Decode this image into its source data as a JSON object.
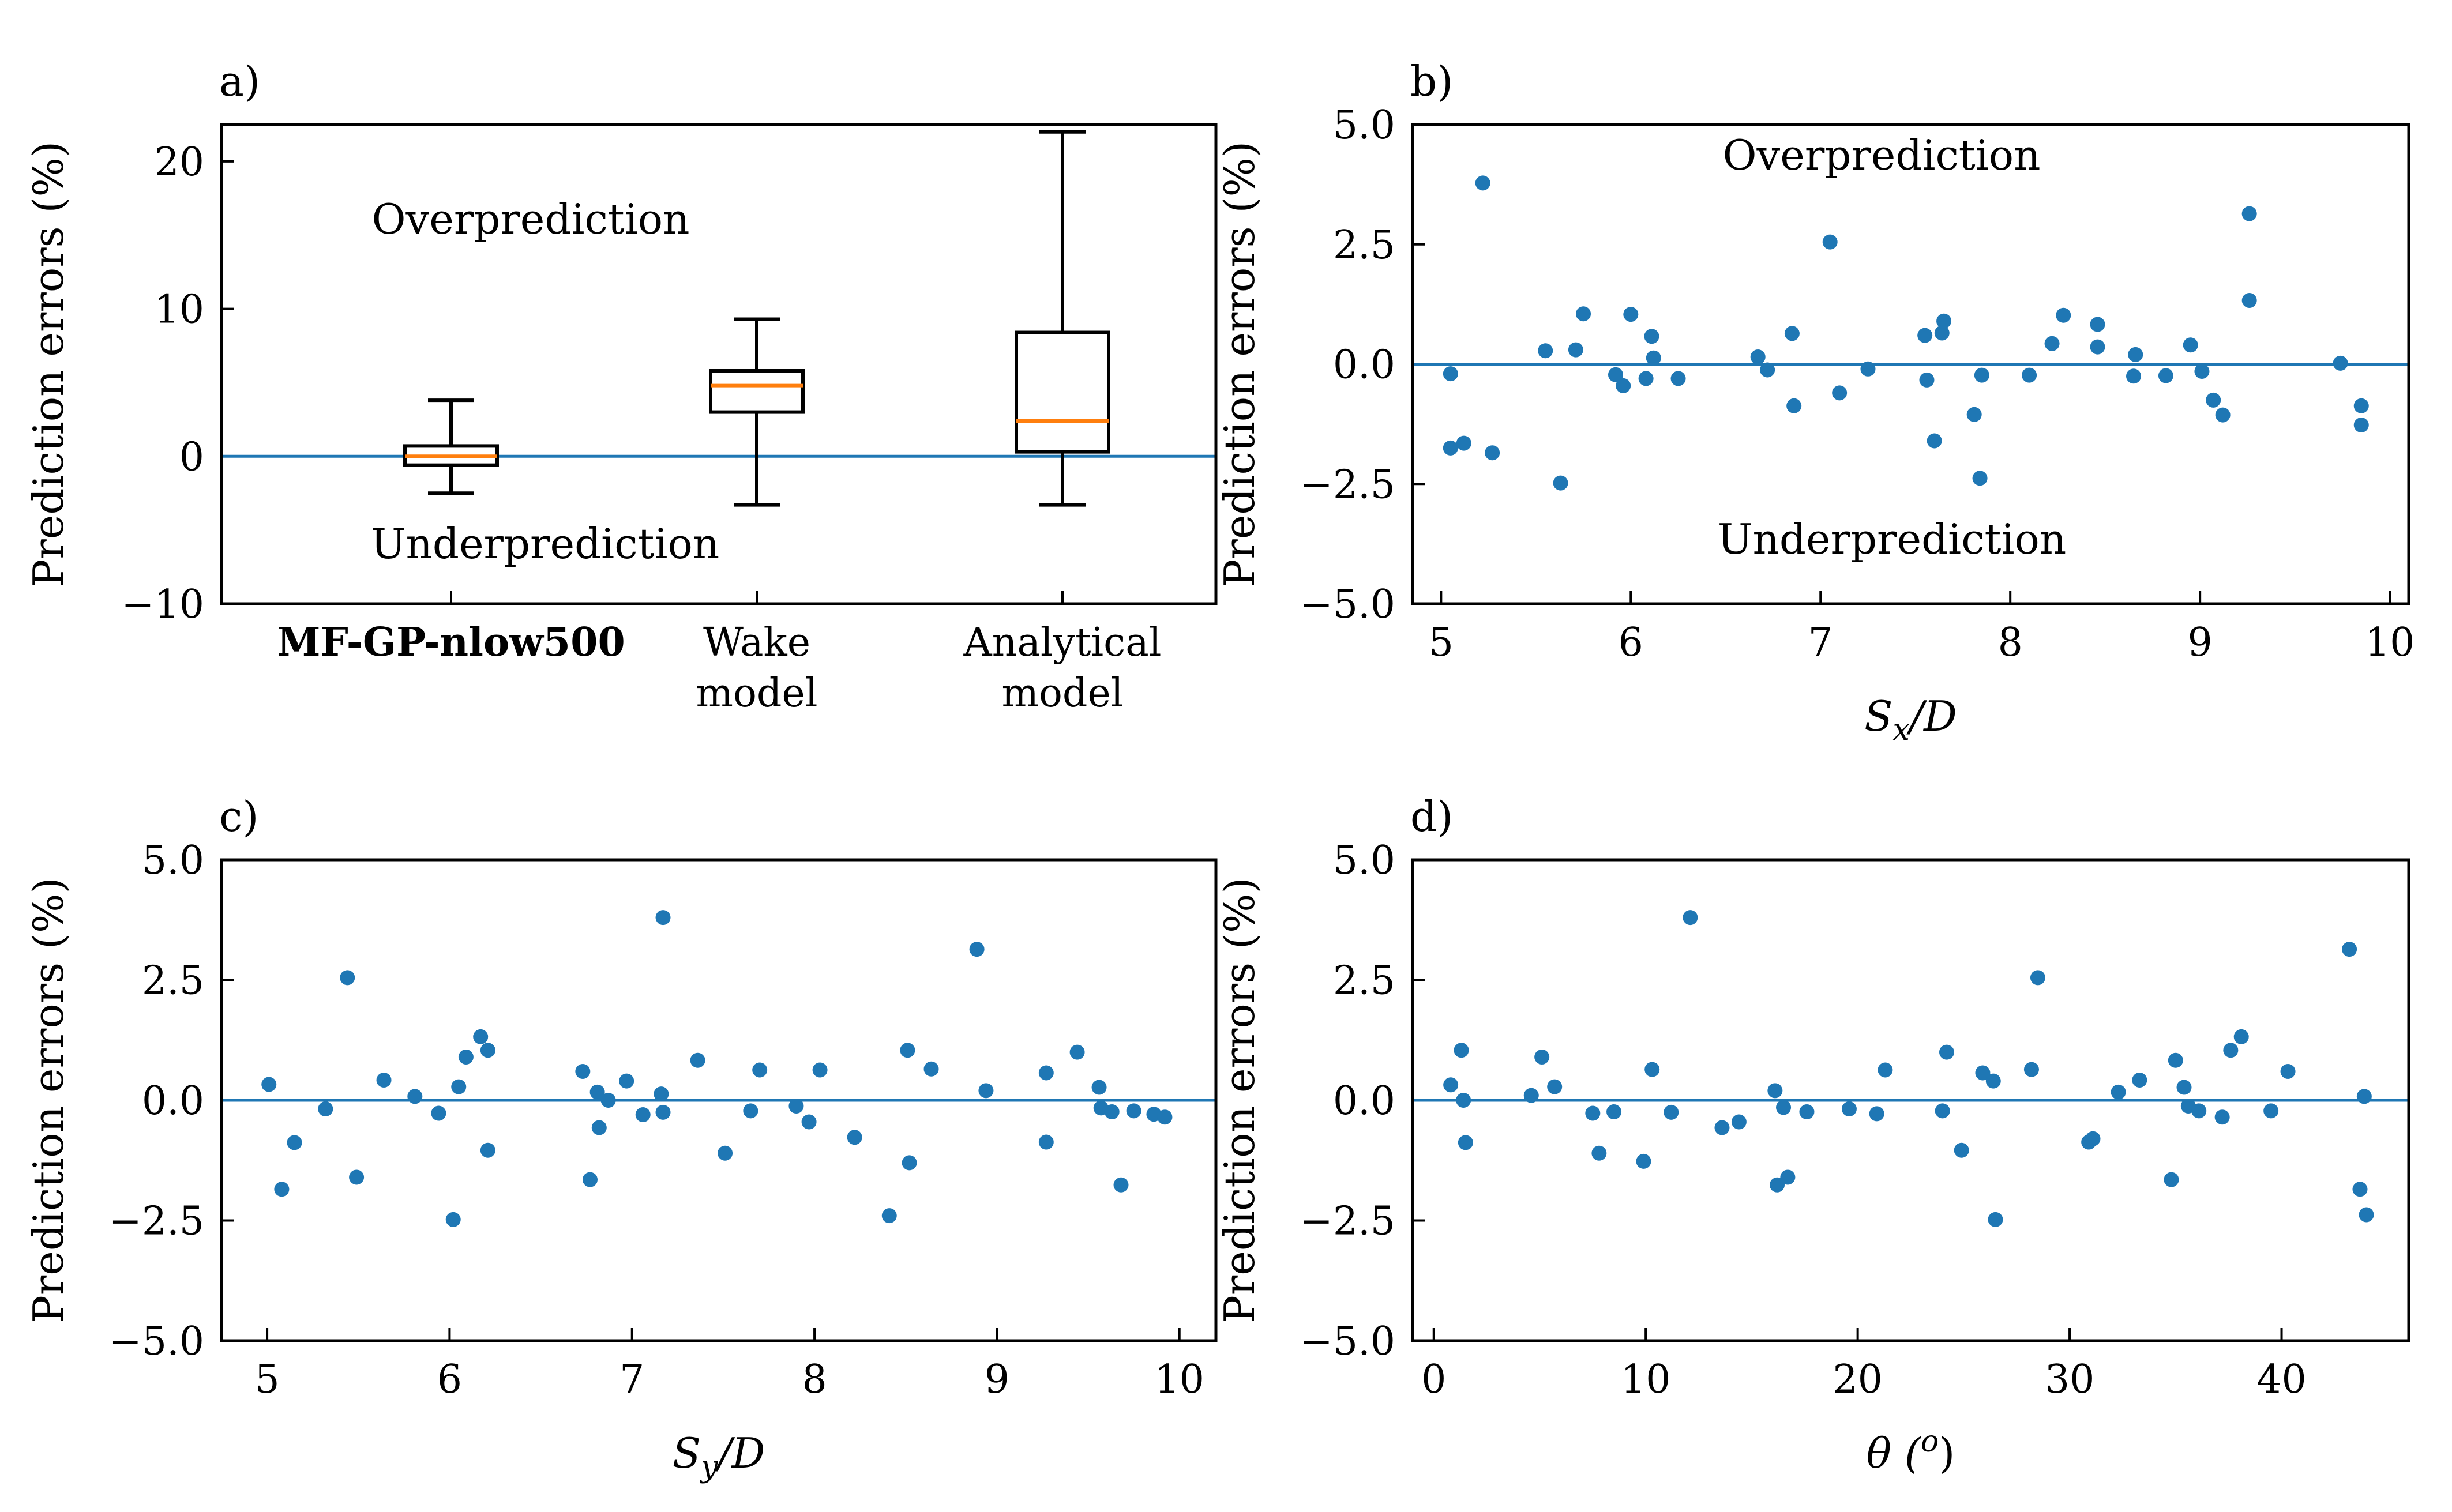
{
  "chart_data": [
    {
      "panel": "a)",
      "type": "box",
      "ylabel": "Prediction errors (%)",
      "ylim": [
        -10,
        22.5
      ],
      "yticks": [
        -10,
        0,
        10,
        20
      ],
      "ytick_labels": [
        "−10",
        "0",
        "10",
        "20"
      ],
      "reference_line": 0,
      "annotations": [
        "Overprediction",
        "Underprediction"
      ],
      "boxes": [
        {
          "label_lines": [
            "MF-GP-nlow500"
          ],
          "bold": true,
          "whislo": -2.5,
          "q1": -0.6,
          "med": 0.0,
          "q3": 0.7,
          "whishi": 3.8
        },
        {
          "label_lines": [
            "Wake",
            "model"
          ],
          "bold": false,
          "whislo": -3.3,
          "q1": 3.0,
          "med": 4.8,
          "q3": 5.8,
          "whishi": 9.3
        },
        {
          "label_lines": [
            "Analytical",
            "model"
          ],
          "bold": false,
          "whislo": -3.3,
          "q1": 0.3,
          "med": 2.4,
          "q3": 8.4,
          "whishi": 22.0
        }
      ]
    },
    {
      "panel": "b)",
      "type": "scatter",
      "xlabel": "S_x/D",
      "xlabel_main": "S",
      "xlabel_sub": "x",
      "xlabel_tail": "/D",
      "ylabel": "Prediction errors (%)",
      "xlim": [
        4.85,
        10.1
      ],
      "ylim": [
        -5.0,
        5.0
      ],
      "xticks": [
        5,
        6,
        7,
        8,
        9,
        10
      ],
      "xtick_labels": [
        "5",
        "6",
        "7",
        "8",
        "9",
        "10"
      ],
      "yticks": [
        -5.0,
        -2.5,
        0.0,
        2.5,
        5.0
      ],
      "ytick_labels": [
        "−5.0",
        "−2.5",
        "0.0",
        "2.5",
        "5.0"
      ],
      "reference_line": 0,
      "annotations": [
        "Overprediction",
        "Underprediction"
      ],
      "x": [
        5.05,
        5.05,
        5.12,
        5.22,
        5.27,
        5.55,
        5.63,
        5.71,
        5.75,
        5.92,
        5.96,
        6.0,
        6.08,
        6.11,
        6.12,
        6.25,
        6.67,
        6.72,
        6.85,
        6.86,
        7.05,
        7.1,
        7.25,
        7.55,
        7.56,
        7.6,
        7.64,
        7.65,
        7.81,
        7.84,
        7.85,
        8.1,
        8.22,
        8.28,
        8.46,
        8.46,
        8.65,
        8.66,
        8.82,
        8.95,
        9.01,
        9.07,
        9.12,
        9.26,
        9.26,
        9.74,
        9.85,
        9.85
      ],
      "y": [
        -0.2,
        -1.75,
        -1.65,
        3.78,
        -1.85,
        0.28,
        -2.48,
        0.3,
        1.05,
        -0.22,
        -0.45,
        1.04,
        -0.3,
        0.58,
        0.13,
        -0.3,
        0.15,
        -0.12,
        0.64,
        -0.87,
        2.55,
        -0.6,
        -0.1,
        0.6,
        -0.33,
        -1.6,
        0.65,
        0.9,
        -1.05,
        -2.38,
        -0.23,
        -0.23,
        0.43,
        1.02,
        0.36,
        0.83,
        -0.25,
        0.2,
        -0.24,
        0.4,
        -0.15,
        -0.75,
        -1.06,
        1.33,
        3.14,
        0.02,
        -0.87,
        -1.27
      ]
    },
    {
      "panel": "c)",
      "type": "scatter",
      "xlabel": "S_y/D",
      "xlabel_main": "S",
      "xlabel_sub": "y",
      "xlabel_tail": "/D",
      "ylabel": "Prediction errors (%)",
      "xlim": [
        4.75,
        10.2
      ],
      "ylim": [
        -5.0,
        5.0
      ],
      "xticks": [
        5,
        6,
        7,
        8,
        9,
        10
      ],
      "xtick_labels": [
        "5",
        "6",
        "7",
        "8",
        "9",
        "10"
      ],
      "yticks": [
        -5.0,
        -2.5,
        0.0,
        2.5,
        5.0
      ],
      "ytick_labels": [
        "−5.0",
        "−2.5",
        "0.0",
        "2.5",
        "5.0"
      ],
      "reference_line": 0,
      "annotations": [],
      "x": [
        5.01,
        5.08,
        5.15,
        5.32,
        5.44,
        5.49,
        5.64,
        5.81,
        5.94,
        6.02,
        6.05,
        6.09,
        6.17,
        6.21,
        6.21,
        6.73,
        6.77,
        6.81,
        6.82,
        6.87,
        6.97,
        7.06,
        7.16,
        7.17,
        7.17,
        7.36,
        7.51,
        7.65,
        7.7,
        7.9,
        7.97,
        8.03,
        8.22,
        8.41,
        8.51,
        8.52,
        8.64,
        8.89,
        8.94,
        9.27,
        9.27,
        9.44,
        9.56,
        9.57,
        9.63,
        9.68,
        9.75,
        9.86,
        9.92
      ],
      "y": [
        0.33,
        -1.85,
        -0.88,
        -0.18,
        2.55,
        -1.6,
        0.42,
        0.08,
        -0.27,
        -2.48,
        0.28,
        0.9,
        1.32,
        1.04,
        -1.04,
        0.6,
        -1.65,
        0.17,
        -0.57,
        0.0,
        0.4,
        -0.3,
        0.13,
        -0.25,
        3.8,
        0.83,
        -1.1,
        -0.22,
        0.63,
        -0.12,
        -0.45,
        0.63,
        -0.77,
        -2.4,
        1.04,
        -1.3,
        0.65,
        3.14,
        0.2,
        -0.87,
        0.57,
        1.0,
        0.27,
        -0.16,
        -0.24,
        -1.76,
        -0.22,
        -0.29,
        -0.35
      ]
    },
    {
      "panel": "d)",
      "type": "scatter",
      "xlabel": "θ (o)",
      "xlabel_main": "θ (",
      "xlabel_sup": "o",
      "xlabel_tail": ")",
      "ylabel": "Prediction errors (%)",
      "xlim": [
        -1.0,
        46.0
      ],
      "ylim": [
        -5.0,
        5.0
      ],
      "xticks": [
        0,
        10,
        20,
        30,
        40
      ],
      "xtick_labels": [
        "0",
        "10",
        "20",
        "30",
        "40"
      ],
      "yticks": [
        -5.0,
        -2.5,
        0.0,
        2.5,
        5.0
      ],
      "ytick_labels": [
        "−5.0",
        "−2.5",
        "0.0",
        "2.5",
        "5.0"
      ],
      "reference_line": 0,
      "annotations": [],
      "x": [
        0.8,
        1.3,
        1.4,
        1.5,
        4.6,
        5.1,
        5.7,
        7.5,
        7.8,
        8.5,
        9.9,
        10.3,
        11.2,
        12.1,
        13.6,
        14.4,
        16.1,
        16.2,
        16.5,
        16.7,
        17.6,
        19.6,
        20.9,
        21.3,
        24.0,
        24.2,
        24.9,
        25.9,
        26.4,
        26.5,
        28.2,
        28.5,
        30.9,
        31.1,
        32.3,
        33.3,
        34.8,
        35.0,
        35.4,
        35.6,
        36.1,
        37.2,
        37.6,
        38.1,
        39.5,
        40.3,
        43.2,
        43.7,
        43.9,
        44.0
      ],
      "y": [
        0.32,
        1.04,
        0.0,
        -0.88,
        0.1,
        0.9,
        0.28,
        -0.27,
        -1.1,
        -0.24,
        -1.27,
        0.64,
        -0.25,
        3.8,
        -0.57,
        -0.45,
        0.2,
        -1.76,
        -0.15,
        -1.6,
        -0.24,
        -0.18,
        -0.28,
        0.63,
        -0.22,
        1.0,
        -1.04,
        0.57,
        0.4,
        -2.48,
        0.64,
        2.55,
        -0.87,
        -0.8,
        0.17,
        0.42,
        -1.65,
        0.83,
        0.27,
        -0.12,
        -0.22,
        -0.35,
        1.04,
        1.32,
        -0.22,
        0.6,
        3.14,
        -1.85,
        0.08,
        -2.38
      ]
    }
  ]
}
